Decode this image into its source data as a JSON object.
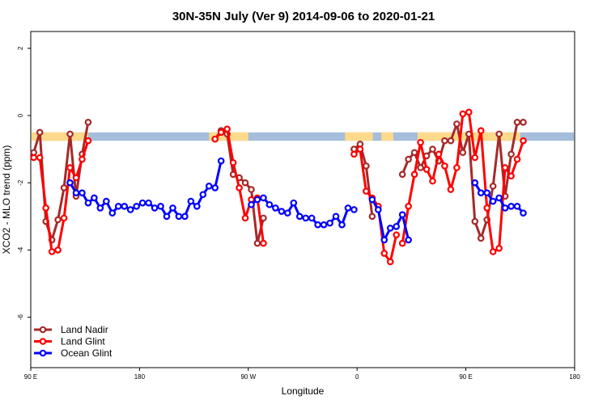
{
  "chart_data": {
    "type": "line",
    "title": "30N-35N July (Ver 9)   2014-09-06 to 2020-01-21",
    "xlabel": "Longitude",
    "ylabel": "XCO2 - MLO trend (ppm)",
    "xlim": [
      90,
      450
    ],
    "ylim": [
      -7.5,
      2.5
    ],
    "xticks": [
      90,
      180,
      270,
      360,
      450
    ],
    "xtick_labels": [
      "90 E",
      "180",
      "90 W",
      "0",
      "90 E",
      "180"
    ],
    "yticks": [
      -6,
      -4,
      -2,
      0,
      2
    ],
    "ytick_labels": [
      "-6",
      "-4",
      "-2",
      "0",
      "2"
    ],
    "xtick_positions": [
      90,
      180,
      270,
      360,
      450,
      540
    ],
    "background_band": {
      "y_range": [
        -0.75,
        -0.5
      ],
      "ocean_color": "#a6bddb",
      "land_color": "#fdd98b",
      "land_segments": [
        [
          90,
          137.5
        ],
        [
          237.5,
          270
        ],
        [
          350,
          373
        ],
        [
          380,
          390
        ],
        [
          410,
          495
        ]
      ]
    },
    "legend_position": "bottom-left",
    "series": [
      {
        "name": "Land Nadir",
        "color": "#a52a2a",
        "segments": [
          {
            "x": [
              92.5,
              97.5,
              102.5,
              107.5,
              112.5,
              117.5,
              122.5,
              127.5,
              132.5,
              137.5
            ],
            "y": [
              -1.1,
              -0.5,
              -3.15,
              -3.7,
              -3.1,
              -2.15,
              -0.55,
              -2.4,
              -1.15,
              -0.2
            ]
          },
          {
            "x": [
              242.5,
              247.5,
              252.5,
              257.5,
              262.5,
              267.5,
              272.5,
              277.5,
              282.5
            ],
            "y": [
              -0.7,
              -0.45,
              -0.55,
              -1.75,
              -1.85,
              -2.0,
              -2.2,
              -3.8,
              -3.05
            ]
          },
          {
            "x": [
              357.5,
              362.5,
              367.5,
              372.5
            ],
            "y": [
              -1.0,
              -0.85,
              -1.5,
              -3.0
            ]
          },
          {
            "x": [
              397.5,
              402.5,
              407.5,
              412.5,
              417.5,
              422.5,
              427.5,
              432.5,
              437.5,
              442.5,
              447.5,
              452.5,
              457.5,
              462.5,
              467.5,
              472.5,
              477.5,
              482.5,
              487.5,
              492.5,
              497.5
            ],
            "y": [
              -1.75,
              -1.3,
              -1.1,
              -1.55,
              -1.2,
              -1.0,
              -1.35,
              -0.75,
              -0.75,
              -0.25,
              -1.1,
              -0.55,
              -3.15,
              -3.65,
              -3.1,
              -2.1,
              -0.55,
              -2.4,
              -1.15,
              -0.2,
              -0.2
            ]
          }
        ]
      },
      {
        "name": "Land Glint",
        "color": "#ff0000",
        "segments": [
          {
            "x": [
              92.5,
              97.5,
              102.5,
              107.5,
              112.5,
              117.5,
              122.5,
              127.5,
              132.5,
              137.5
            ],
            "y": [
              -1.25,
              -1.25,
              -2.75,
              -4.05,
              -4.0,
              -3.05,
              -1.55,
              -1.85,
              -1.3,
              -0.75
            ]
          },
          {
            "x": [
              242.5,
              247.5,
              252.5,
              257.5,
              262.5,
              267.5,
              272.5,
              277.5,
              282.5
            ],
            "y": [
              -0.7,
              -0.5,
              -0.4,
              -1.4,
              -2.15,
              -3.05,
              -2.5,
              -2.45,
              -3.8
            ]
          },
          {
            "x": [
              357.5,
              362.5,
              367.5,
              372.5,
              377.5,
              382.5,
              387.5,
              392.5
            ],
            "y": [
              -1.15,
              -1.0,
              -2.25,
              -2.45,
              -2.7,
              -4.1,
              -4.35,
              -3.55
            ]
          },
          {
            "x": [
              397.5,
              402.5,
              407.5,
              412.5,
              417.5,
              422.5,
              427.5,
              432.5,
              437.5,
              442.5,
              447.5,
              452.5,
              457.5,
              462.5,
              467.5,
              472.5,
              477.5,
              482.5,
              487.5,
              492.5,
              497.5
            ],
            "y": [
              -3.8,
              -2.7,
              -1.75,
              -0.8,
              -1.6,
              -1.95,
              -1.15,
              -1.5,
              -2.2,
              -1.55,
              0.05,
              0.1,
              -1.25,
              -0.45,
              -2.75,
              -4.05,
              -3.95,
              -1.55,
              -1.8,
              -1.3,
              -0.75
            ]
          }
        ]
      },
      {
        "name": "Ocean Glint",
        "color": "#0000ff",
        "segments": [
          {
            "x": [
              122.5,
              127.5,
              132.5,
              137.5,
              142.5,
              147.5,
              152.5,
              157.5,
              162.5,
              167.5,
              172.5,
              177.5,
              182.5,
              187.5,
              192.5,
              197.5,
              202.5,
              207.5,
              212.5,
              217.5,
              222.5,
              227.5,
              232.5,
              237.5,
              242.5,
              247.5
            ],
            "y": [
              -2.0,
              -2.3,
              -2.3,
              -2.6,
              -2.45,
              -2.75,
              -2.55,
              -2.9,
              -2.7,
              -2.7,
              -2.8,
              -2.7,
              -2.6,
              -2.6,
              -2.75,
              -2.7,
              -3.0,
              -2.75,
              -3.0,
              -3.0,
              -2.55,
              -2.7,
              -2.35,
              -2.1,
              -2.15,
              -1.35
            ]
          },
          {
            "x": [
              272.5,
              277.5,
              282.5,
              287.5,
              292.5,
              297.5,
              302.5,
              307.5,
              312.5,
              317.5,
              322.5,
              327.5,
              332.5,
              337.5,
              342.5,
              347.5,
              352.5,
              357.5
            ],
            "y": [
              -2.65,
              -2.5,
              -2.45,
              -2.65,
              -2.75,
              -2.85,
              -2.9,
              -2.6,
              -3.0,
              -3.05,
              -3.05,
              -3.25,
              -3.25,
              -3.2,
              -3.0,
              -3.25,
              -2.75,
              -2.8
            ]
          },
          {
            "x": [
              372.5,
              377.5,
              382.5,
              387.5,
              392.5,
              397.5,
              402.5
            ],
            "y": [
              -2.5,
              -2.8,
              -3.7,
              -3.35,
              -3.3,
              -2.95,
              -3.7
            ]
          },
          {
            "x": [
              457.5,
              462.5,
              467.5,
              472.5,
              477.5,
              482.5,
              487.5,
              492.5,
              497.5
            ],
            "y": [
              -2.0,
              -2.3,
              -2.3,
              -2.55,
              -2.45,
              -2.75,
              -2.7,
              -2.7,
              -2.9
            ]
          }
        ]
      }
    ]
  }
}
